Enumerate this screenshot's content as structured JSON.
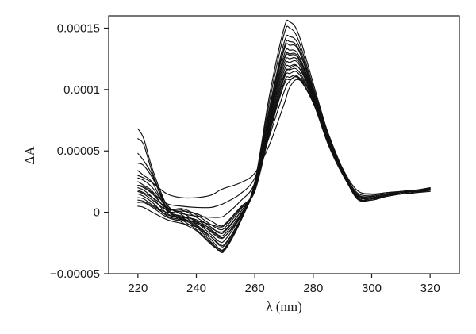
{
  "chart_data": {
    "type": "line",
    "title": "",
    "xlabel": "λ (nm)",
    "ylabel": "ΔA",
    "xlim": [
      210,
      330
    ],
    "ylim": [
      -5e-05,
      0.00016
    ],
    "xticks": [
      220,
      240,
      260,
      280,
      300,
      320
    ],
    "xtick_labels": [
      "220",
      "240",
      "260",
      "280",
      "300",
      "320"
    ],
    "yticks": [
      -5e-05,
      0,
      5e-05,
      0.0001,
      0.00015
    ],
    "ytick_labels": [
      "−0.00005",
      "0",
      "0.00005",
      "0.0001",
      "0.00015"
    ],
    "grid": false,
    "legend": "none",
    "line_color": "#111111",
    "x": [
      220,
      222,
      225,
      230,
      235,
      240,
      245,
      248,
      250,
      255,
      260,
      265,
      270,
      272,
      275,
      280,
      285,
      290,
      295,
      300,
      305,
      310,
      315,
      320
    ],
    "series": [
      {
        "values": [
          6.8e-05,
          6e-05,
          3.5e-05,
          5e-06,
          -8e-06,
          -1.5e-05,
          -2.6e-05,
          -3.1e-05,
          -3e-05,
          -8e-06,
          2.5e-05,
          9.5e-05,
          0.00015,
          0.000155,
          0.000145,
          0.000105,
          6.5e-05,
          3.5e-05,
          1.2e-05,
          1e-05,
          1.3e-05,
          1.5e-05,
          1.6e-05,
          2e-05
        ]
      },
      {
        "values": [
          6e-05,
          5.5e-05,
          3.2e-05,
          3e-06,
          -6e-06,
          -1.4e-05,
          -2.5e-05,
          -3e-05,
          -2.9e-05,
          -7e-06,
          2.4e-05,
          9e-05,
          0.000145,
          0.00015,
          0.00014,
          0.000102,
          6.4e-05,
          3.4e-05,
          1.2e-05,
          1.1e-05,
          1.3e-05,
          1.5e-05,
          1.6e-05,
          1.9e-05
        ]
      },
      {
        "values": [
          4.8e-05,
          4.2e-05,
          3e-05,
          2e-06,
          -5e-06,
          -1.2e-05,
          -2.4e-05,
          -3.2e-05,
          -3e-05,
          -8e-06,
          2.3e-05,
          8.5e-05,
          0.000138,
          0.000143,
          0.000136,
          0.0001,
          6.2e-05,
          3.3e-05,
          1.1e-05,
          1e-05,
          1.3e-05,
          1.5e-05,
          1.6e-05,
          1.8e-05
        ]
      },
      {
        "values": [
          4e-05,
          3.8e-05,
          2.8e-05,
          6e-06,
          -2e-06,
          -1e-05,
          -2e-05,
          -2.7e-05,
          -2.6e-05,
          -6e-06,
          2.2e-05,
          8.2e-05,
          0.000132,
          0.000136,
          0.000132,
          9.8e-05,
          6.1e-05,
          3.3e-05,
          1.2e-05,
          1.1e-05,
          1.4e-05,
          1.6e-05,
          1.7e-05,
          1.9e-05
        ]
      },
      {
        "values": [
          3.4e-05,
          3e-05,
          2.4e-05,
          2e-06,
          -4e-06,
          -1.1e-05,
          -2.2e-05,
          -3e-05,
          -2.8e-05,
          -7e-06,
          2.2e-05,
          8e-05,
          0.000128,
          0.000132,
          0.000128,
          9.7e-05,
          6.1e-05,
          3.3e-05,
          1.2e-05,
          1.1e-05,
          1.3e-05,
          1.6e-05,
          1.7e-05,
          1.8e-05
        ]
      },
      {
        "values": [
          2.8e-05,
          2.6e-05,
          2e-05,
          4e-06,
          0.0,
          -8e-06,
          -1.8e-05,
          -2.4e-05,
          -2.2e-05,
          -4e-06,
          2.1e-05,
          7.8e-05,
          0.000125,
          0.000129,
          0.000126,
          9.6e-05,
          6e-05,
          3.3e-05,
          1.3e-05,
          1.2e-05,
          1.4e-05,
          1.6e-05,
          1.7e-05,
          1.9e-05
        ]
      },
      {
        "values": [
          2.5e-05,
          2.2e-05,
          1.7e-05,
          1e-06,
          -3e-06,
          -7e-06,
          -1.6e-05,
          -2.1e-05,
          -1.9e-05,
          -3e-06,
          2e-05,
          7.6e-05,
          0.000121,
          0.000125,
          0.000123,
          9.5e-05,
          5.9e-05,
          3.3e-05,
          1.3e-05,
          1.2e-05,
          1.4e-05,
          1.6e-05,
          1.7e-05,
          1.8e-05
        ]
      },
      {
        "values": [
          2.2e-05,
          2e-05,
          1.5e-05,
          3e-06,
          2e-06,
          -4e-06,
          -1.2e-05,
          -1.7e-05,
          -1.5e-05,
          0.0,
          2e-05,
          7.4e-05,
          0.000118,
          0.000122,
          0.000121,
          9.4e-05,
          5.9e-05,
          3.3e-05,
          1.4e-05,
          1.3e-05,
          1.5e-05,
          1.6e-05,
          1.7e-05,
          1.8e-05
        ]
      },
      {
        "values": [
          2e-05,
          1.8e-05,
          1.2e-05,
          -1e-06,
          -4e-06,
          -6e-06,
          -1.4e-05,
          -1.9e-05,
          -1.7e-05,
          -2e-06,
          1.9e-05,
          7.2e-05,
          0.000115,
          0.000119,
          0.000118,
          9.3e-05,
          5.8e-05,
          3.2e-05,
          1.3e-05,
          1.2e-05,
          1.4e-05,
          1.6e-05,
          1.7e-05,
          1.9e-05
        ]
      },
      {
        "values": [
          1.7e-05,
          1.5e-05,
          1e-05,
          2e-06,
          3e-06,
          -2e-06,
          -1e-05,
          -1.4e-05,
          -1.2e-05,
          2e-06,
          1.9e-05,
          7e-05,
          0.000112,
          0.000116,
          0.000115,
          9.2e-05,
          5.8e-05,
          3.2e-05,
          1.4e-05,
          1.3e-05,
          1.5e-05,
          1.7e-05,
          1.8e-05,
          2e-05
        ]
      },
      {
        "values": [
          1.5e-05,
          1.3e-05,
          8e-06,
          -3e-06,
          -6e-06,
          -8e-06,
          -1.3e-05,
          -1.6e-05,
          -1.4e-05,
          0.0,
          1.8e-05,
          6.8e-05,
          0.000109,
          0.000113,
          0.000113,
          9.1e-05,
          5.7e-05,
          3.2e-05,
          1.3e-05,
          1.2e-05,
          1.4e-05,
          1.6e-05,
          1.7e-05,
          1.8e-05
        ]
      },
      {
        "values": [
          1.2e-05,
          1.1e-05,
          6e-06,
          0.0,
          1e-06,
          -1e-06,
          -7e-06,
          -1.1e-05,
          -9e-06,
          4e-06,
          1.8e-05,
          6.6e-05,
          0.000106,
          0.00011,
          0.00011,
          9e-05,
          5.6e-05,
          3.1e-05,
          1.4e-05,
          1.3e-05,
          1.5e-05,
          1.6e-05,
          1.8e-05,
          1.9e-05
        ]
      },
      {
        "values": [
          8e-06,
          8e-06,
          4e-06,
          -4e-06,
          -7e-06,
          -7e-06,
          -1e-05,
          -1.2e-05,
          -1e-05,
          3e-06,
          1.7e-05,
          6.4e-05,
          0.000104,
          0.000108,
          0.000109,
          8.9e-05,
          5.6e-05,
          3.1e-05,
          1.3e-05,
          1.2e-05,
          1.4e-05,
          1.6e-05,
          1.7e-05,
          1.8e-05
        ]
      },
      {
        "values": [
          3e-05,
          2.8e-05,
          2.4e-05,
          1.5e-05,
          1.2e-05,
          1.2e-05,
          1.4e-05,
          1.8e-05,
          2e-05,
          2.4e-05,
          3.2e-05,
          5.5e-05,
          8.8e-05,
          0.000102,
          0.000108,
          9.6e-05,
          6.5e-05,
          3.6e-05,
          1.8e-05,
          1.5e-05,
          1.6e-05,
          1.7e-05,
          1.8e-05,
          1.9e-05
        ]
      },
      {
        "values": [
          2.2e-05,
          2.1e-05,
          1.6e-05,
          7e-06,
          5e-06,
          4e-06,
          4e-06,
          6e-06,
          8e-06,
          1.5e-05,
          2.8e-05,
          6.2e-05,
          9.8e-05,
          0.000107,
          0.00011,
          9.4e-05,
          6.2e-05,
          3.5e-05,
          1.6e-05,
          1.4e-05,
          1.6e-05,
          1.7e-05,
          1.8e-05,
          2e-05
        ]
      },
      {
        "values": [
          1.8e-05,
          1.6e-05,
          1.2e-05,
          4e-06,
          -1e-06,
          -3e-06,
          -4e-06,
          -4e-06,
          -2e-06,
          9e-06,
          2.4e-05,
          6.8e-05,
          0.00011,
          0.000117,
          0.000118,
          9.6e-05,
          6.1e-05,
          3.4e-05,
          1.5e-05,
          1.3e-05,
          1.5e-05,
          1.7e-05,
          1.8e-05,
          1.9e-05
        ]
      },
      {
        "values": [
          1e-05,
          9e-06,
          5e-06,
          -2e-06,
          -5e-06,
          -9e-06,
          -1.5e-05,
          -2e-05,
          -1.9e-05,
          -4e-06,
          2e-05,
          7.8e-05,
          0.000124,
          0.000128,
          0.000125,
          9.7e-05,
          6e-05,
          3.3e-05,
          1.3e-05,
          1.2e-05,
          1.4e-05,
          1.6e-05,
          1.7e-05,
          1.8e-05
        ]
      },
      {
        "values": [
          5e-06,
          4e-06,
          0.0,
          -6e-06,
          -9e-06,
          -1.2e-05,
          -2e-05,
          -2.6e-05,
          -2.5e-05,
          -6e-06,
          2.1e-05,
          8.4e-05,
          0.000134,
          0.000139,
          0.000133,
          9.9e-05,
          6.1e-05,
          3.3e-05,
          1.2e-05,
          1.1e-05,
          1.3e-05,
          1.5e-05,
          1.6e-05,
          1.7e-05
        ]
      }
    ]
  }
}
